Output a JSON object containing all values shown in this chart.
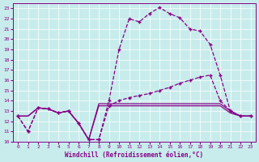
{
  "xlabel": "Windchill (Refroidissement éolien,°C)",
  "xlim": [
    -0.5,
    23.5
  ],
  "ylim": [
    10,
    23.5
  ],
  "yticks": [
    10,
    11,
    12,
    13,
    14,
    15,
    16,
    17,
    18,
    19,
    20,
    21,
    22,
    23
  ],
  "xticks": [
    0,
    1,
    2,
    3,
    4,
    5,
    6,
    7,
    8,
    9,
    10,
    11,
    12,
    13,
    14,
    15,
    16,
    17,
    18,
    19,
    20,
    21,
    22,
    23
  ],
  "bg_color": "#c8ecec",
  "line_color": "#880088",
  "line1_x": [
    0,
    1,
    2,
    3,
    4,
    5,
    6,
    7,
    8,
    9,
    10,
    11,
    12,
    13,
    14,
    15,
    16,
    17,
    18,
    19,
    20,
    21,
    22,
    23
  ],
  "line1_y": [
    12.5,
    11.0,
    13.3,
    13.2,
    12.8,
    13.0,
    11.8,
    10.2,
    10.2,
    14.0,
    19.0,
    22.0,
    21.7,
    22.5,
    23.1,
    22.5,
    22.1,
    21.0,
    20.8,
    19.5,
    16.5,
    13.0,
    12.5,
    12.5
  ],
  "line2_x": [
    0,
    1,
    2,
    3,
    4,
    5,
    6,
    7,
    8,
    9,
    10,
    11,
    12,
    13,
    14,
    15,
    16,
    17,
    18,
    19,
    20,
    21,
    22,
    23
  ],
  "line2_y": [
    12.5,
    11.0,
    13.3,
    13.2,
    12.8,
    13.0,
    11.8,
    10.2,
    10.2,
    13.5,
    14.0,
    14.3,
    14.5,
    14.7,
    15.0,
    15.3,
    15.7,
    16.0,
    16.3,
    16.5,
    14.0,
    13.0,
    12.5,
    12.5
  ],
  "line3_x": [
    0,
    1,
    2,
    3,
    4,
    5,
    6,
    7,
    8,
    9,
    10,
    11,
    12,
    13,
    14,
    15,
    16,
    17,
    18,
    19,
    20,
    21,
    22,
    23
  ],
  "line3_y": [
    12.5,
    12.5,
    13.3,
    13.2,
    12.8,
    13.0,
    11.8,
    10.2,
    13.7,
    13.7,
    13.7,
    13.7,
    13.7,
    13.7,
    13.7,
    13.7,
    13.7,
    13.7,
    13.7,
    13.7,
    13.7,
    13.0,
    12.5,
    12.5
  ],
  "line4_x": [
    0,
    1,
    2,
    3,
    4,
    5,
    6,
    7,
    8,
    9,
    10,
    11,
    12,
    13,
    14,
    15,
    16,
    17,
    18,
    19,
    20,
    21,
    22,
    23
  ],
  "line4_y": [
    12.5,
    12.5,
    13.3,
    13.2,
    12.8,
    13.0,
    11.8,
    10.2,
    13.5,
    13.5,
    13.5,
    13.5,
    13.5,
    13.5,
    13.5,
    13.5,
    13.5,
    13.5,
    13.5,
    13.5,
    13.5,
    12.8,
    12.5,
    12.5
  ]
}
